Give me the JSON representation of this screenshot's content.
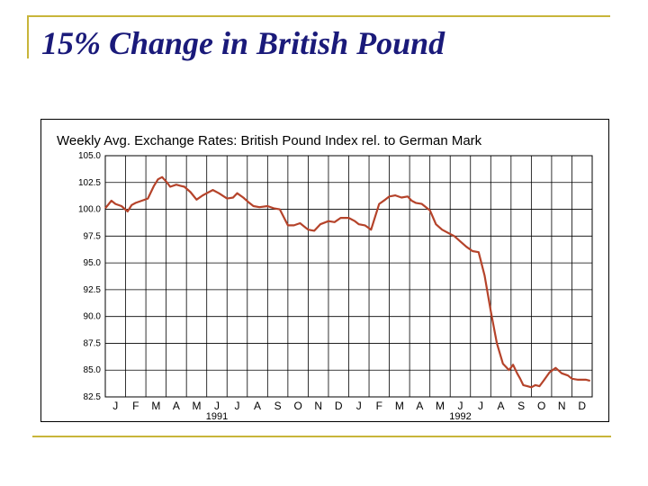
{
  "slide": {
    "title": "15% Change in British Pound"
  },
  "colors": {
    "title": "#1a1a7a",
    "rule": "#c8b53a",
    "series": "#b5432a"
  },
  "chart_data": {
    "type": "line",
    "title": "Weekly Avg. Exchange Rates: British Pound Index rel. to German Mark",
    "xlabel": "",
    "ylabel": "",
    "ylim": [
      82.5,
      105.0
    ],
    "yticks": [
      "105.0",
      "102.5",
      "100.0",
      "97.5",
      "95.0",
      "92.5",
      "90.0",
      "87.5",
      "85.0",
      "82.5"
    ],
    "month_ticks": [
      "J",
      "F",
      "M",
      "A",
      "M",
      "J",
      "J",
      "A",
      "S",
      "O",
      "N",
      "D",
      "J",
      "F",
      "M",
      "A",
      "M",
      "J",
      "J",
      "A",
      "S",
      "O",
      "N",
      "D"
    ],
    "years": [
      {
        "label": "1991",
        "month_index": 5.5
      },
      {
        "label": "1992",
        "month_index": 17.5
      }
    ],
    "grid": true,
    "series": [
      {
        "x": [
          0,
          0.3,
          0.5,
          0.8,
          1.1,
          1.3,
          1.5,
          1.8,
          2.1,
          2.4,
          2.6,
          2.8,
          3.0,
          3.2,
          3.5,
          3.7,
          3.9,
          4.2,
          4.5,
          4.8,
          5.0,
          5.3,
          5.6,
          6.0,
          6.3,
          6.5,
          6.8,
          7.1,
          7.3,
          7.6,
          8.0,
          8.3,
          8.6,
          9.0,
          9.3,
          9.6,
          10.0,
          10.3,
          10.6,
          11.0,
          11.3,
          11.6,
          12.0,
          12.3,
          12.5,
          12.8,
          13.1,
          13.5,
          13.8,
          14.0,
          14.3,
          14.6,
          14.9,
          15.1,
          15.3,
          15.6,
          16.0,
          16.3,
          16.6,
          16.9,
          17.2,
          17.5,
          17.8,
          18.1,
          18.4,
          18.7,
          19.0,
          19.3,
          19.6,
          19.9,
          20.1,
          20.3,
          20.45,
          20.6,
          20.8,
          21.0,
          21.2,
          21.4,
          21.6,
          21.9,
          22.2,
          22.5,
          22.8,
          23.0,
          23.3,
          23.5,
          23.7,
          23.9
        ],
        "y": [
          100.1,
          100.8,
          100.5,
          100.3,
          99.8,
          100.4,
          100.6,
          100.8,
          101.0,
          102.2,
          102.8,
          103.0,
          102.6,
          102.1,
          102.3,
          102.2,
          102.1,
          101.6,
          100.9,
          101.3,
          101.5,
          101.8,
          101.5,
          101.0,
          101.1,
          101.5,
          101.1,
          100.6,
          100.3,
          100.2,
          100.3,
          100.1,
          100.0,
          98.5,
          98.5,
          98.7,
          98.1,
          98.0,
          98.6,
          98.9,
          98.8,
          99.2,
          99.2,
          98.9,
          98.6,
          98.5,
          98.1,
          100.5,
          100.9,
          101.2,
          101.3,
          101.1,
          101.2,
          100.8,
          100.6,
          100.5,
          99.9,
          98.6,
          98.1,
          97.8,
          97.5,
          97.0,
          96.5,
          96.1,
          96.0,
          93.8,
          90.5,
          87.5,
          85.6,
          85.0,
          85.5,
          84.7,
          84.2,
          83.6,
          83.5,
          83.4,
          83.6,
          83.5,
          84.0,
          84.8,
          85.2,
          84.7,
          84.5,
          84.2,
          84.1,
          84.1,
          84.1,
          84.0
        ]
      }
    ]
  }
}
